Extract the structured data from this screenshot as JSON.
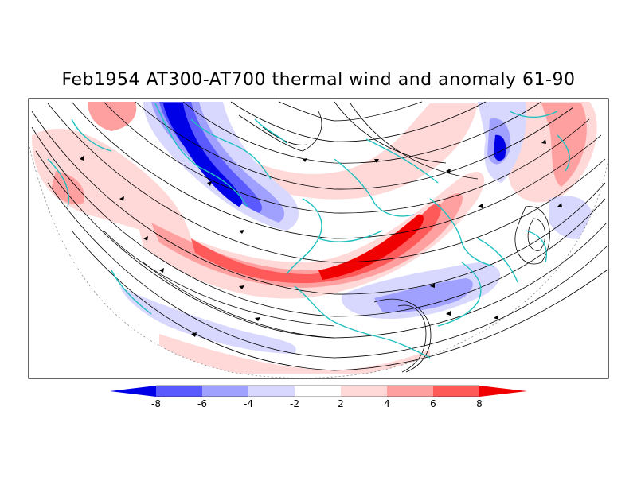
{
  "title": "Feb1954 AT300-AT700 thermal wind and anomaly 61-90",
  "colorbar": {
    "labels": [
      "-8",
      "-6",
      "-4",
      "-2",
      "2",
      "4",
      "6",
      "8"
    ],
    "bins": [
      {
        "range": "< -8",
        "color": "#0000e6"
      },
      {
        "range": "-8 to -6",
        "color": "#5a5aff"
      },
      {
        "range": "-6 to -4",
        "color": "#a0a0ff"
      },
      {
        "range": "-4 to -2",
        "color": "#d8d8ff"
      },
      {
        "range": "-2 to 2",
        "color": "#ffffff"
      },
      {
        "range": "2 to 4",
        "color": "#ffd8d8"
      },
      {
        "range": "4 to 6",
        "color": "#ffa0a0"
      },
      {
        "range": "6 to 8",
        "color": "#ff5a5a"
      },
      {
        "range": "> 8",
        "color": "#f00000"
      }
    ]
  },
  "colors": {
    "coastline": "#20c0c0",
    "streamline": "#000000",
    "frame": "#000000"
  },
  "map_projection": "north polar stereographic sector",
  "layers": [
    "shaded anomaly",
    "thermal wind streamlines",
    "coastlines"
  ]
}
